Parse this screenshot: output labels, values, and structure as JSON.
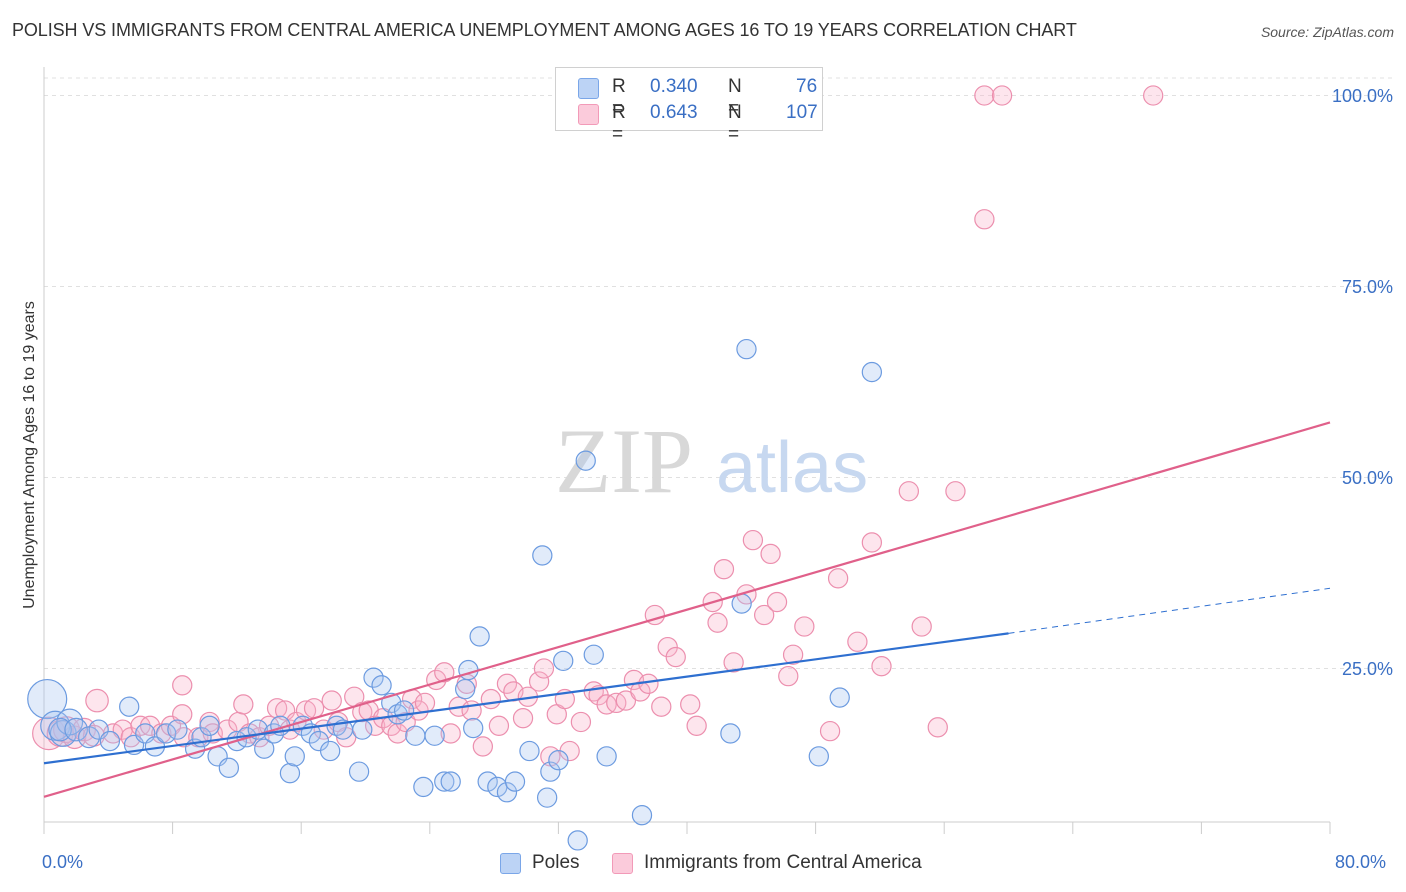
{
  "title": "POLISH VS IMMIGRANTS FROM CENTRAL AMERICA UNEMPLOYMENT AMONG AGES 16 TO 19 YEARS CORRELATION CHART",
  "source": "Source: ZipAtlas.com",
  "watermark": "ZIPatlas",
  "colors": {
    "blue": "#7aa6e8",
    "blue_line": "#2e6fd0",
    "pink": "#f29ab8",
    "pink_line": "#e0608a",
    "tick_text": "#3a6fc4"
  },
  "legend_top": [
    {
      "r_label": "R =",
      "r_value": "0.340",
      "n_label": "N =",
      "n_value": "76"
    },
    {
      "r_label": "R =",
      "r_value": "0.643",
      "n_label": "N =",
      "n_value": "107"
    }
  ],
  "legend_bottom": [
    "Poles",
    "Immigrants from Central America"
  ],
  "chart_data": {
    "type": "scatter",
    "title": "POLISH VS IMMIGRANTS FROM CENTRAL AMERICA UNEMPLOYMENT AMONG AGES 16 TO 19 YEARS CORRELATION CHART",
    "xlabel": "",
    "ylabel": "Unemployment Among Ages 16 to 19 years",
    "xlim": [
      0,
      80
    ],
    "ylim": [
      0,
      102
    ],
    "x_tick_labels": [
      "0.0%",
      "80.0%"
    ],
    "y_tick_labels": [
      "25.0%",
      "50.0%",
      "75.0%",
      "100.0%"
    ],
    "y_ticks": [
      25,
      50,
      75,
      100
    ],
    "grid": "horizontal dashed",
    "legend": "top-center",
    "series": [
      {
        "name": "Poles",
        "color": "#7aa6e8",
        "R": 0.34,
        "N": 76,
        "trend": {
          "x0": 0,
          "y0": 12.6,
          "x1": 60,
          "y1": 29.6,
          "dashed_to_x": 80,
          "dashed_to_y": 35.5
        },
        "points": [
          [
            0.2,
            21,
            22
          ],
          [
            0.7,
            17.5,
            16
          ],
          [
            1.2,
            16.5,
            14
          ],
          [
            1.6,
            18,
            14
          ],
          [
            1,
            17,
            12
          ],
          [
            2,
            17,
            12
          ],
          [
            2.8,
            16,
            11
          ],
          [
            3.4,
            17,
            10
          ],
          [
            4.1,
            15.5,
            10
          ],
          [
            5.3,
            20,
            10
          ],
          [
            5.6,
            15,
            10
          ],
          [
            6.3,
            16.5,
            10
          ],
          [
            6.9,
            14.8,
            10
          ],
          [
            7.6,
            16.5,
            10
          ],
          [
            8.3,
            17,
            10
          ],
          [
            9.4,
            14.5,
            10
          ],
          [
            9.8,
            16,
            10
          ],
          [
            10.3,
            17.5,
            10
          ],
          [
            10.8,
            13.5,
            10
          ],
          [
            11.5,
            12,
            10
          ],
          [
            12,
            15.5,
            10
          ],
          [
            12.6,
            16,
            10
          ],
          [
            13.3,
            17,
            10
          ],
          [
            13.7,
            14.5,
            10
          ],
          [
            14.3,
            16.5,
            10
          ],
          [
            14.7,
            17.5,
            10
          ],
          [
            15.3,
            11.3,
            10
          ],
          [
            15.6,
            13.5,
            10
          ],
          [
            16.1,
            17.5,
            10
          ],
          [
            16.6,
            16.5,
            10
          ],
          [
            17.1,
            15.5,
            10
          ],
          [
            17.8,
            14.2,
            10
          ],
          [
            18.2,
            17.5,
            10
          ],
          [
            18.6,
            17,
            10
          ],
          [
            19.6,
            11.5,
            10
          ],
          [
            19.8,
            17,
            10
          ],
          [
            20.5,
            23.8,
            10
          ],
          [
            21,
            22.8,
            10
          ],
          [
            21.6,
            20.5,
            10
          ],
          [
            22,
            19,
            10
          ],
          [
            22.4,
            19.5,
            10
          ],
          [
            23.1,
            16.2,
            10
          ],
          [
            23.6,
            9.5,
            10
          ],
          [
            24.3,
            16.2,
            10
          ],
          [
            24.9,
            10.2,
            10
          ],
          [
            25.3,
            10.2,
            10
          ],
          [
            26.2,
            22.3,
            10
          ],
          [
            26.4,
            24.8,
            10
          ],
          [
            26.7,
            17.2,
            10
          ],
          [
            27.1,
            29.2,
            10
          ],
          [
            27.6,
            10.2,
            10
          ],
          [
            28.2,
            9.5,
            10
          ],
          [
            28.8,
            8.8,
            10
          ],
          [
            29.3,
            10.2,
            10
          ],
          [
            30.2,
            14.2,
            10
          ],
          [
            31,
            39.8,
            10
          ],
          [
            31.3,
            8.1,
            10
          ],
          [
            31.5,
            11.5,
            10
          ],
          [
            32,
            13,
            10
          ],
          [
            32.3,
            26,
            10
          ],
          [
            33.2,
            2.5,
            10
          ],
          [
            33.7,
            52.2,
            10
          ],
          [
            34.2,
            26.8,
            10
          ],
          [
            35,
            13.5,
            10
          ],
          [
            37.2,
            5.8,
            10
          ],
          [
            42.7,
            16.5,
            10
          ],
          [
            43.4,
            33.5,
            10
          ],
          [
            43.7,
            66.8,
            10
          ],
          [
            48.2,
            13.5,
            10
          ],
          [
            49.5,
            21.2,
            10
          ],
          [
            51.5,
            63.8,
            10
          ]
        ]
      },
      {
        "name": "Immigrants from Central America",
        "color": "#f29ab8",
        "R": 0.643,
        "N": 107,
        "trend": {
          "x0": 0,
          "y0": 8.2,
          "x1": 80,
          "y1": 57.2
        },
        "points": [
          [
            0.3,
            16.5,
            18
          ],
          [
            1,
            16.5,
            14
          ],
          [
            1.4,
            17,
            14
          ],
          [
            1.9,
            16,
            12
          ],
          [
            2.5,
            17,
            12
          ],
          [
            3.3,
            20.8,
            12
          ],
          [
            3.1,
            16.2,
            11
          ],
          [
            4.3,
            16.5,
            10
          ],
          [
            4.9,
            17,
            10
          ],
          [
            5.4,
            16,
            10
          ],
          [
            6,
            17.5,
            10
          ],
          [
            6.6,
            17.5,
            10
          ],
          [
            7.3,
            16.5,
            10
          ],
          [
            7.9,
            17.5,
            10
          ],
          [
            8.6,
            22.8,
            10
          ],
          [
            8.7,
            16,
            10
          ],
          [
            8.6,
            19,
            10
          ],
          [
            9.6,
            16,
            10
          ],
          [
            10.3,
            18,
            10
          ],
          [
            10.5,
            16.5,
            10
          ],
          [
            11.4,
            17,
            10
          ],
          [
            12.1,
            18,
            10
          ],
          [
            12.4,
            20.3,
            10
          ],
          [
            12.8,
            16.5,
            10
          ],
          [
            13.4,
            16,
            10
          ],
          [
            14,
            17.5,
            10
          ],
          [
            14.5,
            19.8,
            10
          ],
          [
            15,
            19.5,
            10
          ],
          [
            15.3,
            17,
            10
          ],
          [
            15.7,
            18,
            10
          ],
          [
            16.3,
            19.5,
            10
          ],
          [
            16.8,
            19.8,
            10
          ],
          [
            17.4,
            17,
            10
          ],
          [
            17.9,
            20.8,
            10
          ],
          [
            18.3,
            18,
            10
          ],
          [
            18.8,
            16,
            10
          ],
          [
            19.3,
            21.3,
            10
          ],
          [
            19.8,
            19.3,
            10
          ],
          [
            20.2,
            19.5,
            10
          ],
          [
            20.6,
            17.5,
            10
          ],
          [
            21.1,
            18.5,
            10
          ],
          [
            21.6,
            17.5,
            10
          ],
          [
            22,
            16.5,
            10
          ],
          [
            22.5,
            18,
            10
          ],
          [
            22.9,
            21,
            10
          ],
          [
            23.3,
            19.5,
            10
          ],
          [
            23.7,
            20.5,
            10
          ],
          [
            24.4,
            23.5,
            10
          ],
          [
            24.9,
            24.5,
            10
          ],
          [
            25.3,
            16.5,
            10
          ],
          [
            25.8,
            20,
            10
          ],
          [
            26.3,
            23,
            10
          ],
          [
            26.6,
            19.5,
            10
          ],
          [
            27.3,
            14.8,
            10
          ],
          [
            27.8,
            21,
            10
          ],
          [
            28.3,
            17.5,
            10
          ],
          [
            28.8,
            23,
            10
          ],
          [
            29.2,
            22,
            10
          ],
          [
            29.8,
            18.5,
            10
          ],
          [
            30.1,
            21.3,
            10
          ],
          [
            30.8,
            23.3,
            10
          ],
          [
            31.1,
            25,
            10
          ],
          [
            31.5,
            13.5,
            10
          ],
          [
            31.9,
            19,
            10
          ],
          [
            32.4,
            21,
            10
          ],
          [
            32.7,
            14.2,
            10
          ],
          [
            33.4,
            18,
            10
          ],
          [
            34.2,
            22,
            10
          ],
          [
            34.5,
            21.5,
            10
          ],
          [
            35,
            20.3,
            10
          ],
          [
            35.6,
            20.5,
            10
          ],
          [
            36.2,
            20.8,
            10
          ],
          [
            36.7,
            23.5,
            10
          ],
          [
            37.1,
            22,
            10
          ],
          [
            37.6,
            23,
            10
          ],
          [
            38,
            32,
            10
          ],
          [
            38.4,
            20,
            10
          ],
          [
            38.8,
            27.8,
            10
          ],
          [
            39.3,
            26.5,
            10
          ],
          [
            40.2,
            20.3,
            10
          ],
          [
            40.6,
            17.5,
            10
          ],
          [
            41.6,
            33.7,
            10
          ],
          [
            41.9,
            31,
            10
          ],
          [
            42.3,
            38,
            10
          ],
          [
            42.9,
            25.8,
            10
          ],
          [
            43.7,
            34.7,
            10
          ],
          [
            44.1,
            41.8,
            10
          ],
          [
            44.8,
            32,
            10
          ],
          [
            45.2,
            40,
            10
          ],
          [
            45.6,
            33.7,
            10
          ],
          [
            46.3,
            24,
            10
          ],
          [
            46.6,
            26.8,
            10
          ],
          [
            47.3,
            30.5,
            10
          ],
          [
            48.9,
            16.8,
            10
          ],
          [
            49.4,
            36.8,
            10
          ],
          [
            50.6,
            28.5,
            10
          ],
          [
            51.5,
            41.5,
            10
          ],
          [
            52.1,
            25.3,
            10
          ],
          [
            53.8,
            48.2,
            10
          ],
          [
            54.6,
            30.5,
            10
          ],
          [
            55.6,
            17.3,
            10
          ],
          [
            56.7,
            48.2,
            10
          ],
          [
            58.5,
            83.8,
            10
          ],
          [
            58.5,
            100,
            10
          ],
          [
            59.6,
            100,
            10
          ],
          [
            69,
            100,
            10
          ]
        ]
      }
    ]
  }
}
